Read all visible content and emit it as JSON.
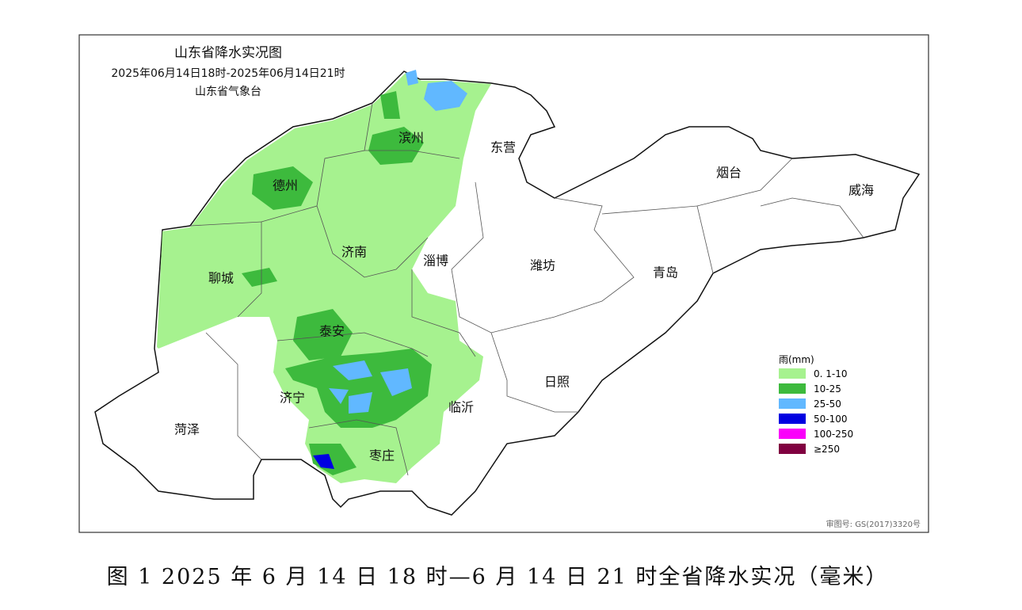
{
  "map": {
    "title": "山东省降水实况图",
    "subtitle": "2025年06月14日18时-2025年06月14日21时",
    "organization": "山东省气象台",
    "cities": [
      "德州",
      "滨州",
      "东营",
      "烟台",
      "威海",
      "聊城",
      "济南",
      "淄博",
      "潍坊",
      "青岛",
      "泰安",
      "济宁",
      "临沂",
      "日照",
      "菏泽",
      "枣庄"
    ],
    "legend": {
      "title": "雨(mm)",
      "items": [
        {
          "label": "0. 1-10",
          "color": "#a6f28f"
        },
        {
          "label": "10-25",
          "color": "#3dba3d"
        },
        {
          "label": "25-50",
          "color": "#61b8ff"
        },
        {
          "label": "50-100",
          "color": "#0000e1"
        },
        {
          "label": "100-250",
          "color": "#fa00fa"
        },
        {
          "label": "≥250",
          "color": "#800040"
        }
      ]
    },
    "approval": "审图号: GS(2017)3320号"
  },
  "caption": "图 1 2025 年 6 月 14 日 18 时—6 月 14 日 21 时全省降水实况（毫米）"
}
